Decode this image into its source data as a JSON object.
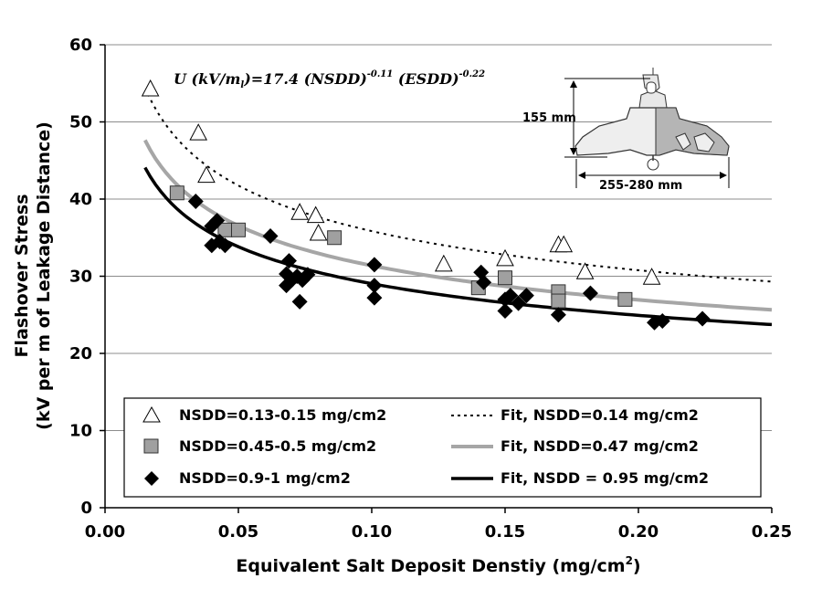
{
  "chart_data": {
    "type": "scatter",
    "title": "",
    "xlabel": "Equivalent Salt Deposit Denstiy (mg/cm",
    "xlabel_sup": "2",
    "xlabel_end": ")",
    "ylabel_line1": "Flashover Stress",
    "ylabel_line2": "(kV per m of Leakage Distance)",
    "xlim": [
      0,
      0.25
    ],
    "ylim": [
      0,
      60
    ],
    "x_ticks": [
      0,
      0.05,
      0.1,
      0.15,
      0.2,
      0.25
    ],
    "x_tick_labels": [
      "0.00",
      "0.05",
      "0.10",
      "0.15",
      "0.20",
      "0.25"
    ],
    "y_ticks": [
      0,
      10,
      20,
      30,
      40,
      50,
      60
    ],
    "y_tick_labels": [
      "0",
      "10",
      "20",
      "30",
      "40",
      "50",
      "60"
    ],
    "grid": "horizontal",
    "legend_position": "bottom",
    "formula": {
      "main": "U (kV/m",
      "sub": "l",
      "mid": ")=17.4 (NSDD)",
      "exp1": "-0.11",
      "mid2": " (ESDD)",
      "exp2": "-0.22"
    },
    "insulator": {
      "height_label": "155 mm",
      "width_label": "255-280 mm"
    },
    "series": [
      {
        "name": "NSDD=0.13-0.15 mg/cm2",
        "marker": "triangle",
        "color": "#ffffff",
        "points": [
          [
            0.017,
            54.2
          ],
          [
            0.035,
            48.5
          ],
          [
            0.038,
            43.0
          ],
          [
            0.073,
            38.2
          ],
          [
            0.079,
            37.8
          ],
          [
            0.08,
            35.5
          ],
          [
            0.127,
            31.5
          ],
          [
            0.15,
            32.2
          ],
          [
            0.17,
            34.0
          ],
          [
            0.172,
            34.0
          ],
          [
            0.18,
            30.5
          ],
          [
            0.205,
            29.8
          ]
        ]
      },
      {
        "name": "NSDD=0.45-0.5 mg/cm2",
        "marker": "square",
        "color": "#a0a0a0",
        "points": [
          [
            0.027,
            40.8
          ],
          [
            0.045,
            36.0
          ],
          [
            0.05,
            36.0
          ],
          [
            0.086,
            35.0
          ],
          [
            0.14,
            28.5
          ],
          [
            0.15,
            29.8
          ],
          [
            0.17,
            28.0
          ],
          [
            0.17,
            26.8
          ],
          [
            0.195,
            27.0
          ]
        ]
      },
      {
        "name": "NSDD=0.9-1 mg/cm2",
        "marker": "diamond",
        "color": "#000000",
        "points": [
          [
            0.034,
            39.7
          ],
          [
            0.04,
            36.5
          ],
          [
            0.042,
            37.2
          ],
          [
            0.04,
            34.0
          ],
          [
            0.043,
            34.5
          ],
          [
            0.045,
            34.0
          ],
          [
            0.062,
            35.2
          ],
          [
            0.069,
            32.0
          ],
          [
            0.068,
            30.3
          ],
          [
            0.068,
            28.8
          ],
          [
            0.07,
            29.5
          ],
          [
            0.072,
            30.0
          ],
          [
            0.074,
            29.5
          ],
          [
            0.073,
            26.7
          ],
          [
            0.076,
            30.2
          ],
          [
            0.101,
            31.5
          ],
          [
            0.101,
            28.8
          ],
          [
            0.101,
            27.2
          ],
          [
            0.141,
            30.5
          ],
          [
            0.142,
            29.2
          ],
          [
            0.15,
            27.0
          ],
          [
            0.15,
            25.5
          ],
          [
            0.152,
            27.5
          ],
          [
            0.155,
            26.5
          ],
          [
            0.158,
            27.5
          ],
          [
            0.17,
            25.0
          ],
          [
            0.182,
            27.8
          ],
          [
            0.206,
            24.0
          ],
          [
            0.209,
            24.2
          ],
          [
            0.224,
            24.5
          ]
        ]
      },
      {
        "name": "Fit, NSDD=0.14 mg/cm2",
        "marker": "line",
        "dash": "dotted",
        "color": "#000000",
        "nsdd": 0.14,
        "x_range": [
          0.016,
          0.25
        ]
      },
      {
        "name": "Fit, NSDD=0.47 mg/cm2",
        "marker": "line",
        "dash": "solid",
        "color": "#a6a6a6",
        "nsdd": 0.47,
        "x_range": [
          0.015,
          0.25
        ]
      },
      {
        "name": "Fit, NSDD = 0.95 mg/cm2",
        "marker": "line",
        "dash": "solid",
        "color": "#000000",
        "nsdd": 0.95,
        "x_range": [
          0.015,
          0.25
        ]
      }
    ],
    "fit_model": {
      "a": 17.4,
      "nsdd_exp": -0.11,
      "esdd_exp": -0.22
    }
  },
  "colors": {
    "axis": "#000000",
    "grid": "#8c8c8c",
    "background": "#ffffff"
  }
}
